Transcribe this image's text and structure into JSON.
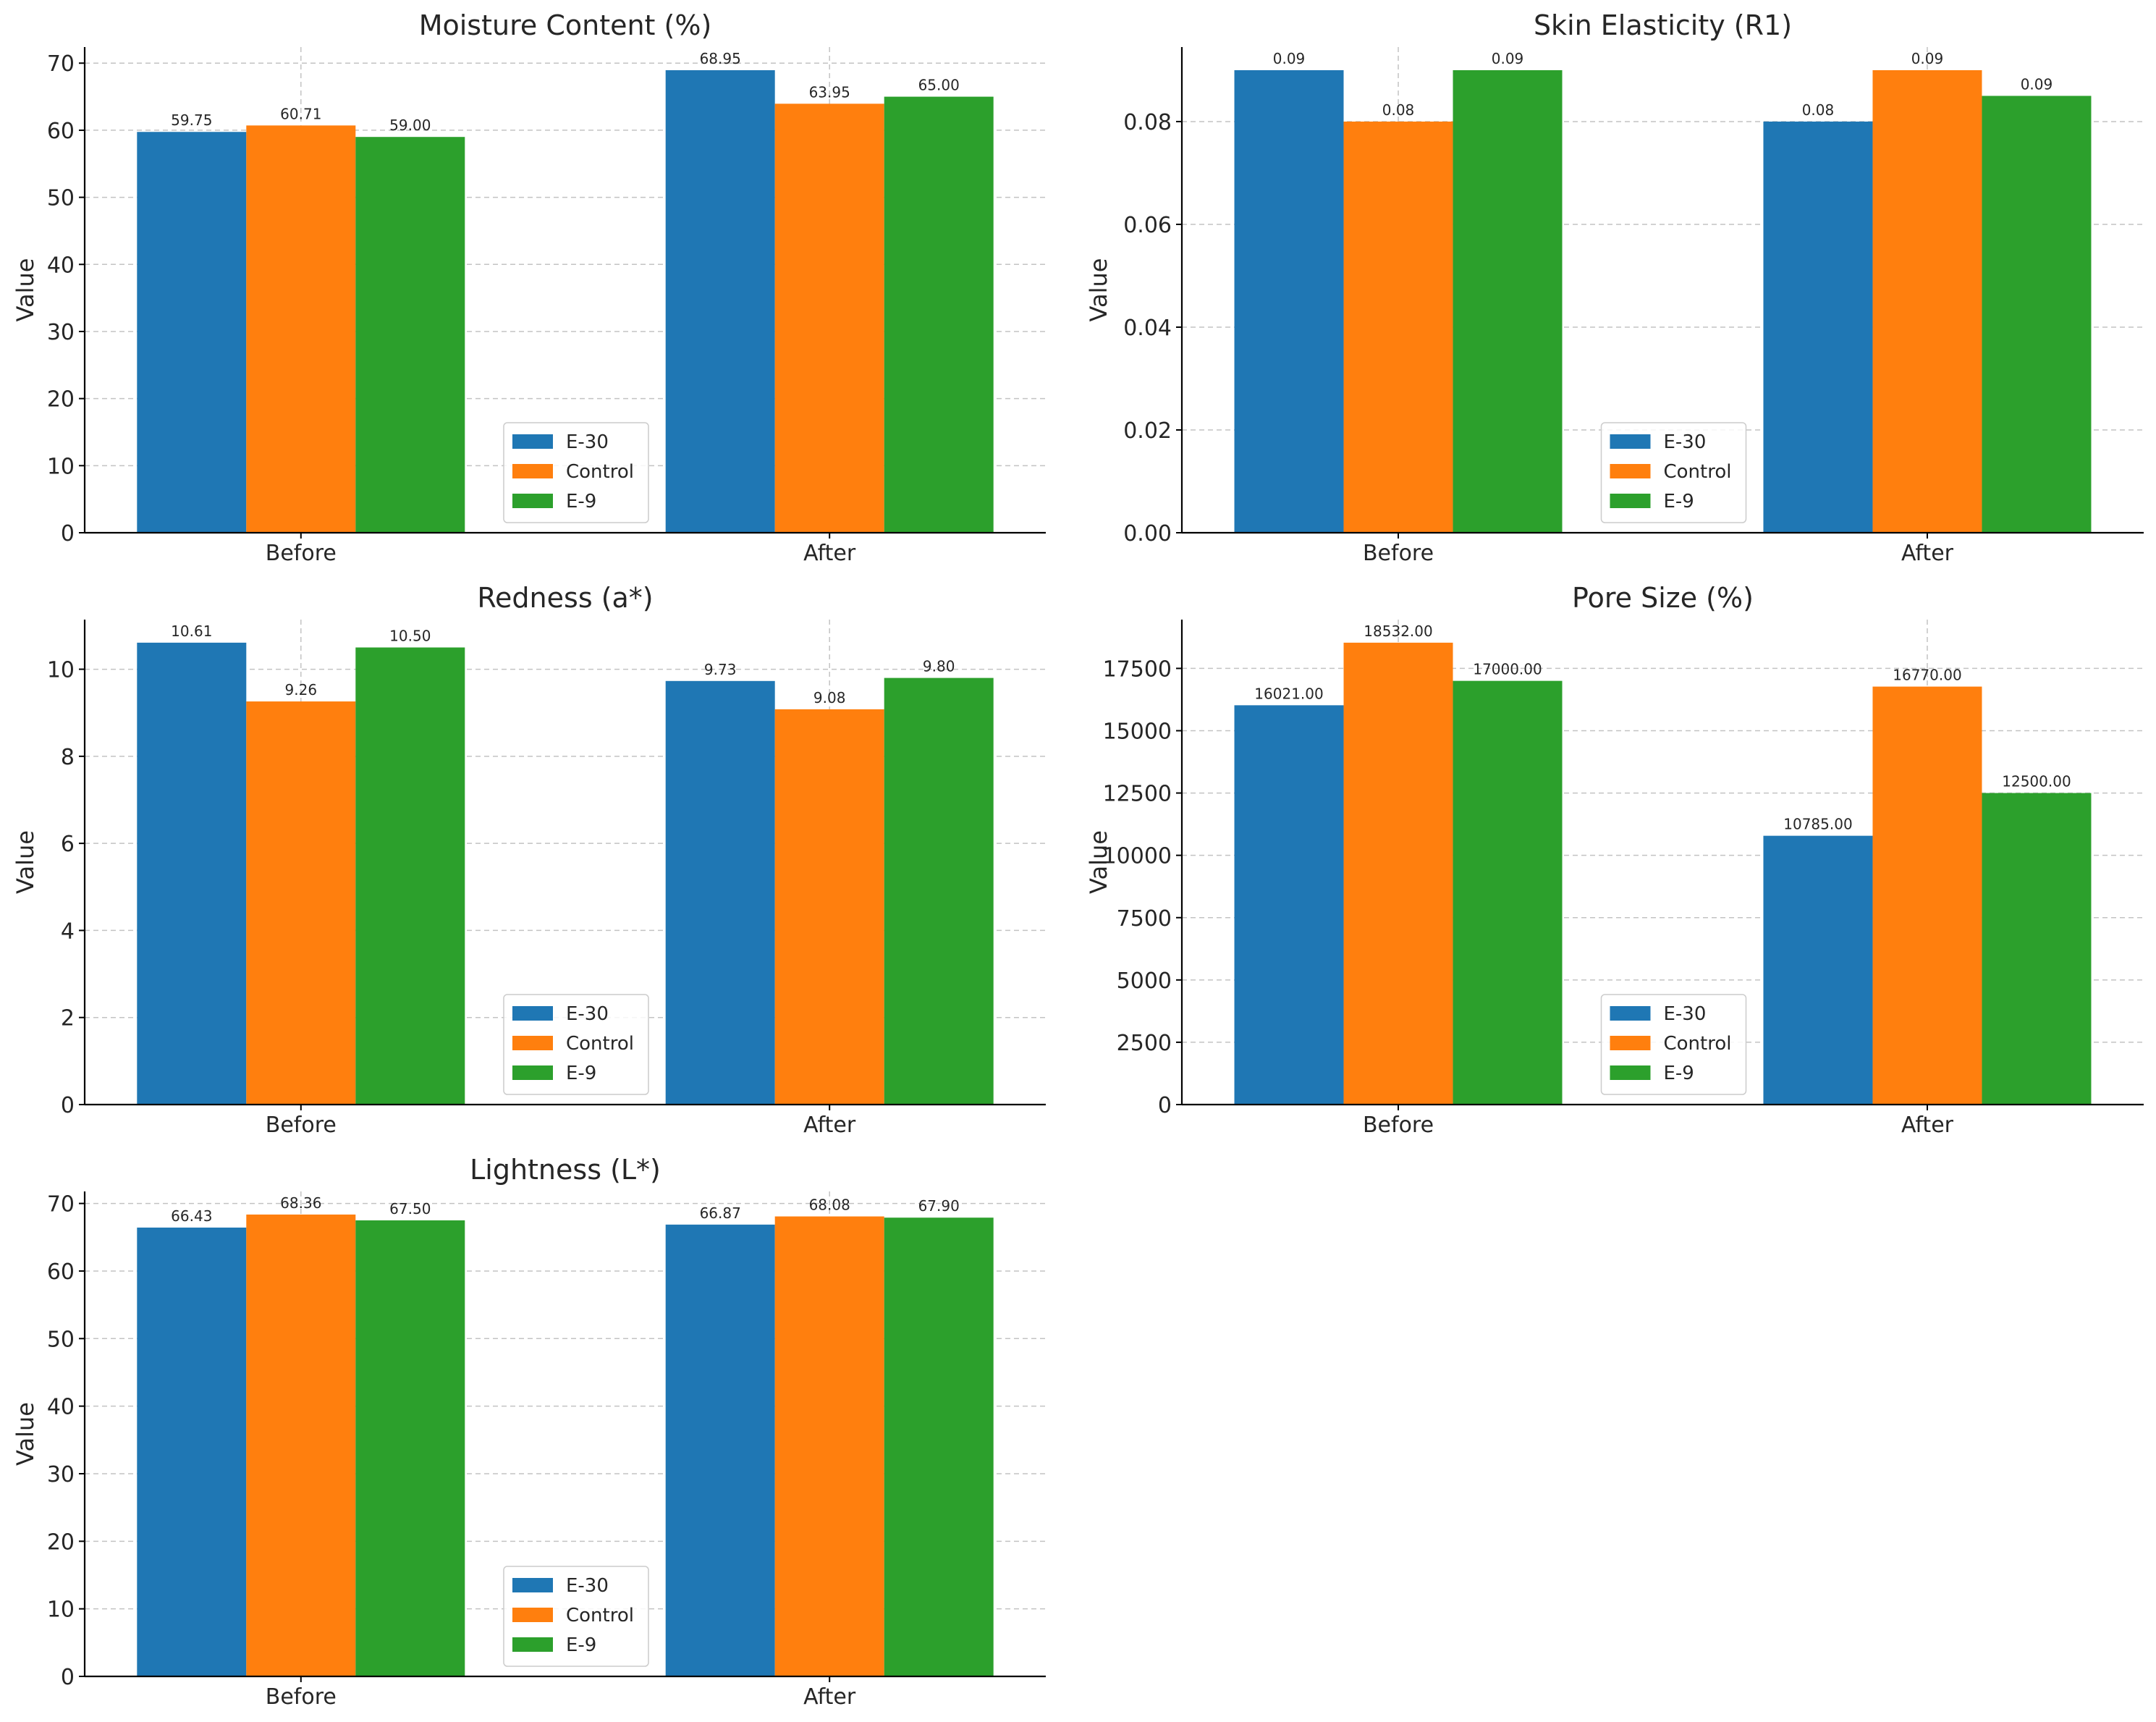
{
  "colors": {
    "E-30": "#1f77b4",
    "Control": "#ff7f0e",
    "E-9": "#2ca02c"
  },
  "chart_data": [
    {
      "type": "bar",
      "title": "Moisture Content (%)",
      "ylabel": "Value",
      "categories": [
        "Before",
        "After"
      ],
      "series": [
        {
          "name": "E-30",
          "values": [
            59.75,
            68.95
          ]
        },
        {
          "name": "Control",
          "values": [
            60.71,
            63.95
          ]
        },
        {
          "name": "E-9",
          "values": [
            59.0,
            65.0
          ]
        }
      ],
      "data_labels": [
        [
          "59.75",
          "68.95"
        ],
        [
          "60.71",
          "63.95"
        ],
        [
          "59.00",
          "65.00"
        ]
      ],
      "ylim": [
        0,
        72.4
      ],
      "yticks": [
        0,
        10,
        20,
        30,
        40,
        50,
        60,
        70
      ],
      "ytick_labels": [
        "0",
        "10",
        "20",
        "30",
        "40",
        "50",
        "60",
        "70"
      ],
      "legend_position": "lower-center",
      "grid": true
    },
    {
      "type": "bar",
      "title": "Skin Elasticity (R1)",
      "ylabel": "Value",
      "categories": [
        "Before",
        "After"
      ],
      "series": [
        {
          "name": "E-30",
          "values": [
            0.09,
            0.08
          ]
        },
        {
          "name": "Control",
          "values": [
            0.08,
            0.09
          ]
        },
        {
          "name": "E-9",
          "values": [
            0.09,
            0.085
          ]
        }
      ],
      "data_labels": [
        [
          "0.09",
          "0.08"
        ],
        [
          "0.08",
          "0.09"
        ],
        [
          "0.09",
          "0.09"
        ]
      ],
      "ylim": [
        0,
        0.0945
      ],
      "yticks": [
        0,
        0.02,
        0.04,
        0.06,
        0.08
      ],
      "ytick_labels": [
        "0.00",
        "0.02",
        "0.04",
        "0.06",
        "0.08"
      ],
      "legend_position": "lower-center",
      "grid": true
    },
    {
      "type": "bar",
      "title": "Redness (a*)",
      "ylabel": "Value",
      "categories": [
        "Before",
        "After"
      ],
      "series": [
        {
          "name": "E-30",
          "values": [
            10.61,
            9.73
          ]
        },
        {
          "name": "Control",
          "values": [
            9.26,
            9.08
          ]
        },
        {
          "name": "E-9",
          "values": [
            10.5,
            9.8
          ]
        }
      ],
      "data_labels": [
        [
          "10.61",
          "9.73"
        ],
        [
          "9.26",
          "9.08"
        ],
        [
          "10.50",
          "9.80"
        ]
      ],
      "ylim": [
        0,
        11.14
      ],
      "yticks": [
        0,
        2,
        4,
        6,
        8,
        10
      ],
      "ytick_labels": [
        "0",
        "2",
        "4",
        "6",
        "8",
        "10"
      ],
      "legend_position": "lower-center",
      "grid": true
    },
    {
      "type": "bar",
      "title": "Pore Size (%)",
      "ylabel": "Value",
      "categories": [
        "Before",
        "After"
      ],
      "series": [
        {
          "name": "E-30",
          "values": [
            16021,
            10785
          ]
        },
        {
          "name": "Control",
          "values": [
            18532,
            16770
          ]
        },
        {
          "name": "E-9",
          "values": [
            17000,
            12500
          ]
        }
      ],
      "data_labels": [
        [
          "16021.00",
          "10785.00"
        ],
        [
          "18532.00",
          "16770.00"
        ],
        [
          "17000.00",
          "12500.00"
        ]
      ],
      "ylim": [
        0,
        19458
      ],
      "yticks": [
        0,
        2500,
        5000,
        7500,
        10000,
        12500,
        15000,
        17500
      ],
      "ytick_labels": [
        "0",
        "2500",
        "5000",
        "7500",
        "10000",
        "12500",
        "15000",
        "17500"
      ],
      "legend_position": "lower-center",
      "grid": true
    },
    {
      "type": "bar",
      "title": "Lightness (L*)",
      "ylabel": "Value",
      "categories": [
        "Before",
        "After"
      ],
      "series": [
        {
          "name": "E-30",
          "values": [
            66.43,
            66.87
          ]
        },
        {
          "name": "Control",
          "values": [
            68.36,
            68.08
          ]
        },
        {
          "name": "E-9",
          "values": [
            67.5,
            67.9
          ]
        }
      ],
      "data_labels": [
        [
          "66.43",
          "66.87"
        ],
        [
          "68.36",
          "68.08"
        ],
        [
          "67.50",
          "67.90"
        ]
      ],
      "ylim": [
        0,
        71.78
      ],
      "yticks": [
        0,
        10,
        20,
        30,
        40,
        50,
        60,
        70
      ],
      "ytick_labels": [
        "0",
        "10",
        "20",
        "30",
        "40",
        "50",
        "60",
        "70"
      ],
      "legend_position": "lower-center",
      "grid": true
    }
  ]
}
